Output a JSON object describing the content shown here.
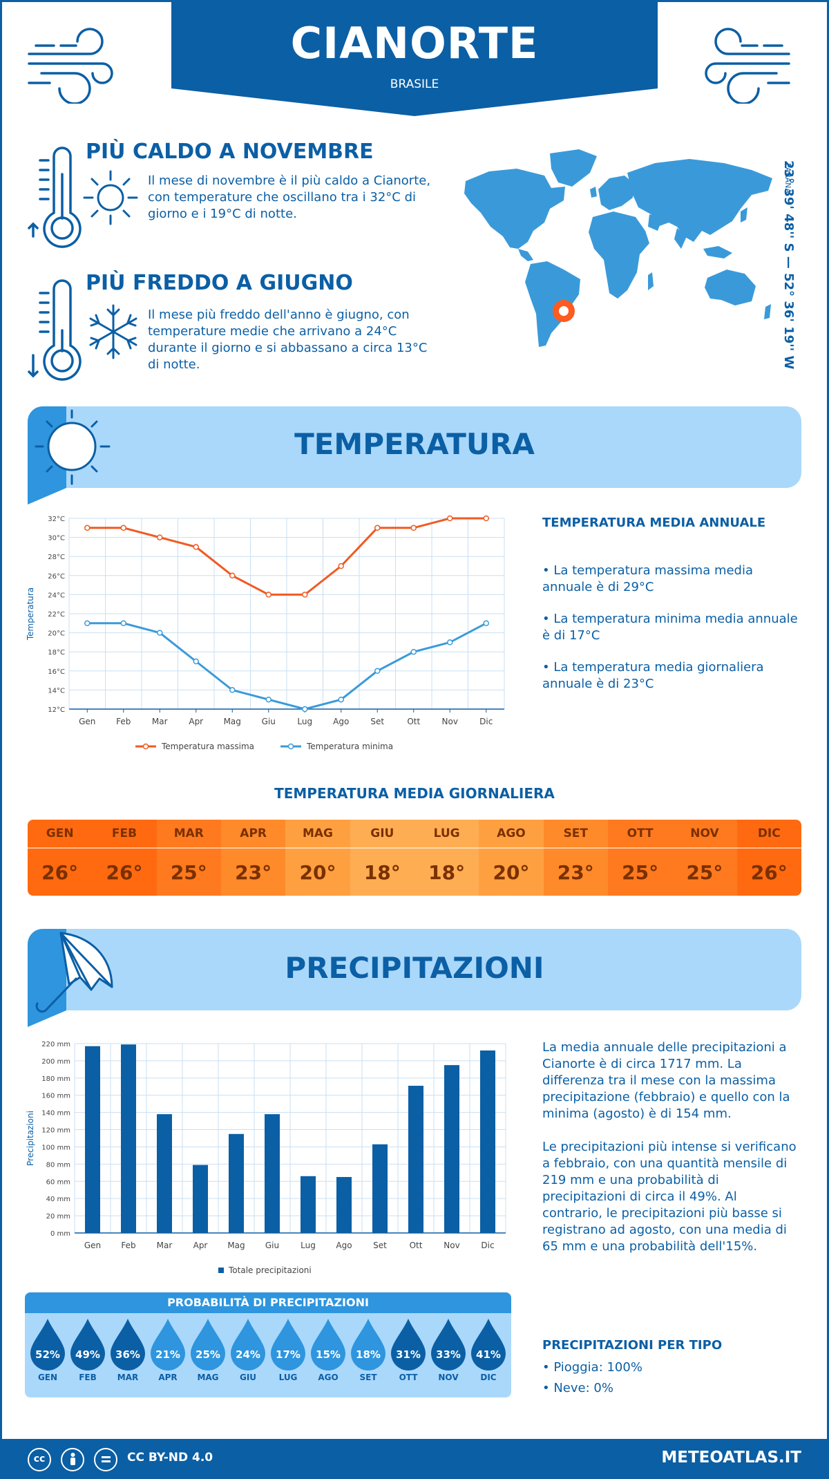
{
  "header": {
    "city": "CIANORTE",
    "country": "BRASILE"
  },
  "facts": {
    "warm": {
      "title": "PIÙ CALDO A NOVEMBRE",
      "lines": [
        "Il mese di novembre è il più caldo a Cianorte,",
        "con temperature che oscillano tra i 32°C di",
        "giorno e i 19°C di notte."
      ]
    },
    "cold": {
      "title": "PIÙ FREDDO A GIUGNO",
      "lines": [
        "Il mese più freddo dell'anno è giugno, con",
        "temperature medie che arrivano a 24°C",
        "durante il giorno e si abbassano a circa 13°C",
        "di notte."
      ]
    }
  },
  "location": {
    "coords": "23° 39' 48'' S — 52° 36' 19'' W",
    "region": "PARANÁ"
  },
  "temperature_section": {
    "title": "TEMPERATURA",
    "annual_title": "TEMPERATURA MEDIA ANNUALE",
    "bullets": [
      [
        "• La temperatura massima media",
        "annuale è di 29°C"
      ],
      [
        "• La temperatura minima media annuale",
        "è di 17°C"
      ],
      [
        "• La temperatura media giornaliera",
        "annuale è di 23°C"
      ]
    ],
    "daily_title": "TEMPERATURA MEDIA GIORNALIERA",
    "daily": [
      {
        "m": "GEN",
        "v": "26°",
        "c": "#ff6a10"
      },
      {
        "m": "FEB",
        "v": "26°",
        "c": "#ff6a10"
      },
      {
        "m": "MAR",
        "v": "25°",
        "c": "#ff7a1e"
      },
      {
        "m": "APR",
        "v": "23°",
        "c": "#ff8a2a"
      },
      {
        "m": "MAG",
        "v": "20°",
        "c": "#ffa040"
      },
      {
        "m": "GIU",
        "v": "18°",
        "c": "#ffad52"
      },
      {
        "m": "LUG",
        "v": "18°",
        "c": "#ffad52"
      },
      {
        "m": "AGO",
        "v": "20°",
        "c": "#ffa040"
      },
      {
        "m": "SET",
        "v": "23°",
        "c": "#ff8a2a"
      },
      {
        "m": "OTT",
        "v": "25°",
        "c": "#ff7a1e"
      },
      {
        "m": "NOV",
        "v": "25°",
        "c": "#ff7a1e"
      },
      {
        "m": "DIC",
        "v": "26°",
        "c": "#ff6a10"
      }
    ]
  },
  "precip_section": {
    "title": "PRECIPITAZIONI",
    "text1": [
      "La media annuale delle precipitazioni a",
      "Cianorte è di circa 1717 mm. La",
      "differenza tra il mese con la massima",
      "precipitazione (febbraio) e quello con la",
      "minima (agosto) è di 154 mm."
    ],
    "text2": [
      "Le precipitazioni più intense si verificano",
      "a febbraio, con una quantità mensile di",
      "219 mm e una probabilità di",
      "precipitazioni di circa il 49%. Al",
      "contrario, le precipitazioni più basse si",
      "registrano ad agosto, con una media di",
      "65 mm e una probabilità dell'15%."
    ],
    "prob_title": "PROBABILITÀ DI PRECIPITAZIONI",
    "prob": [
      {
        "m": "GEN",
        "v": "52%",
        "c": "#0b5fa5"
      },
      {
        "m": "FEB",
        "v": "49%",
        "c": "#0b5fa5"
      },
      {
        "m": "MAR",
        "v": "36%",
        "c": "#0b5fa5"
      },
      {
        "m": "APR",
        "v": "21%",
        "c": "#2e95de"
      },
      {
        "m": "MAG",
        "v": "25%",
        "c": "#2e95de"
      },
      {
        "m": "GIU",
        "v": "24%",
        "c": "#2e95de"
      },
      {
        "m": "LUG",
        "v": "17%",
        "c": "#2e95de"
      },
      {
        "m": "AGO",
        "v": "15%",
        "c": "#2e95de"
      },
      {
        "m": "SET",
        "v": "18%",
        "c": "#2e95de"
      },
      {
        "m": "OTT",
        "v": "31%",
        "c": "#0b5fa5"
      },
      {
        "m": "NOV",
        "v": "33%",
        "c": "#0b5fa5"
      },
      {
        "m": "DIC",
        "v": "41%",
        "c": "#0b5fa5"
      }
    ],
    "type_title": "PRECIPITAZIONI PER TIPO",
    "types": [
      "• Pioggia: 100%",
      "• Neve: 0%"
    ]
  },
  "footer": {
    "license": "CC BY-ND 4.0",
    "site": "METEOATLAS.IT"
  },
  "colors": {
    "brand": "#0b5fa5",
    "max_line": "#f05a22",
    "min_line": "#3a9ad9",
    "bar": "#0b5fa5",
    "light": "#aad8fb"
  },
  "chart_data": [
    {
      "type": "line",
      "categories": [
        "Gen",
        "Feb",
        "Mar",
        "Apr",
        "Mag",
        "Giu",
        "Lug",
        "Ago",
        "Set",
        "Ott",
        "Nov",
        "Dic"
      ],
      "series": [
        {
          "name": "Temperatura massima",
          "values": [
            31,
            31,
            30,
            29,
            26,
            24,
            24,
            27,
            31,
            31,
            32,
            32
          ]
        },
        {
          "name": "Temperatura minima",
          "values": [
            21,
            21,
            20,
            17,
            14,
            13,
            12,
            13,
            16,
            18,
            19,
            21
          ]
        }
      ],
      "ylabel": "Temperatura",
      "ylim": [
        12,
        32
      ],
      "yticks": [
        "12°C",
        "14°C",
        "16°C",
        "18°C",
        "20°C",
        "22°C",
        "24°C",
        "26°C",
        "28°C",
        "30°C",
        "32°C"
      ],
      "legend": "bottom"
    },
    {
      "type": "bar",
      "categories": [
        "Gen",
        "Feb",
        "Mar",
        "Apr",
        "Mag",
        "Giu",
        "Lug",
        "Ago",
        "Set",
        "Ott",
        "Nov",
        "Dic"
      ],
      "series": [
        {
          "name": "Totale precipitazioni",
          "values": [
            217,
            219,
            138,
            79,
            115,
            138,
            66,
            65,
            103,
            171,
            195,
            212
          ]
        }
      ],
      "ylabel": "Precipitazioni",
      "ylim": [
        0,
        220
      ],
      "yticks": [
        "0 mm",
        "20 mm",
        "40 mm",
        "60 mm",
        "80 mm",
        "100 mm",
        "120 mm",
        "140 mm",
        "160 mm",
        "180 mm",
        "200 mm",
        "220 mm"
      ],
      "legend": "bottom"
    }
  ]
}
